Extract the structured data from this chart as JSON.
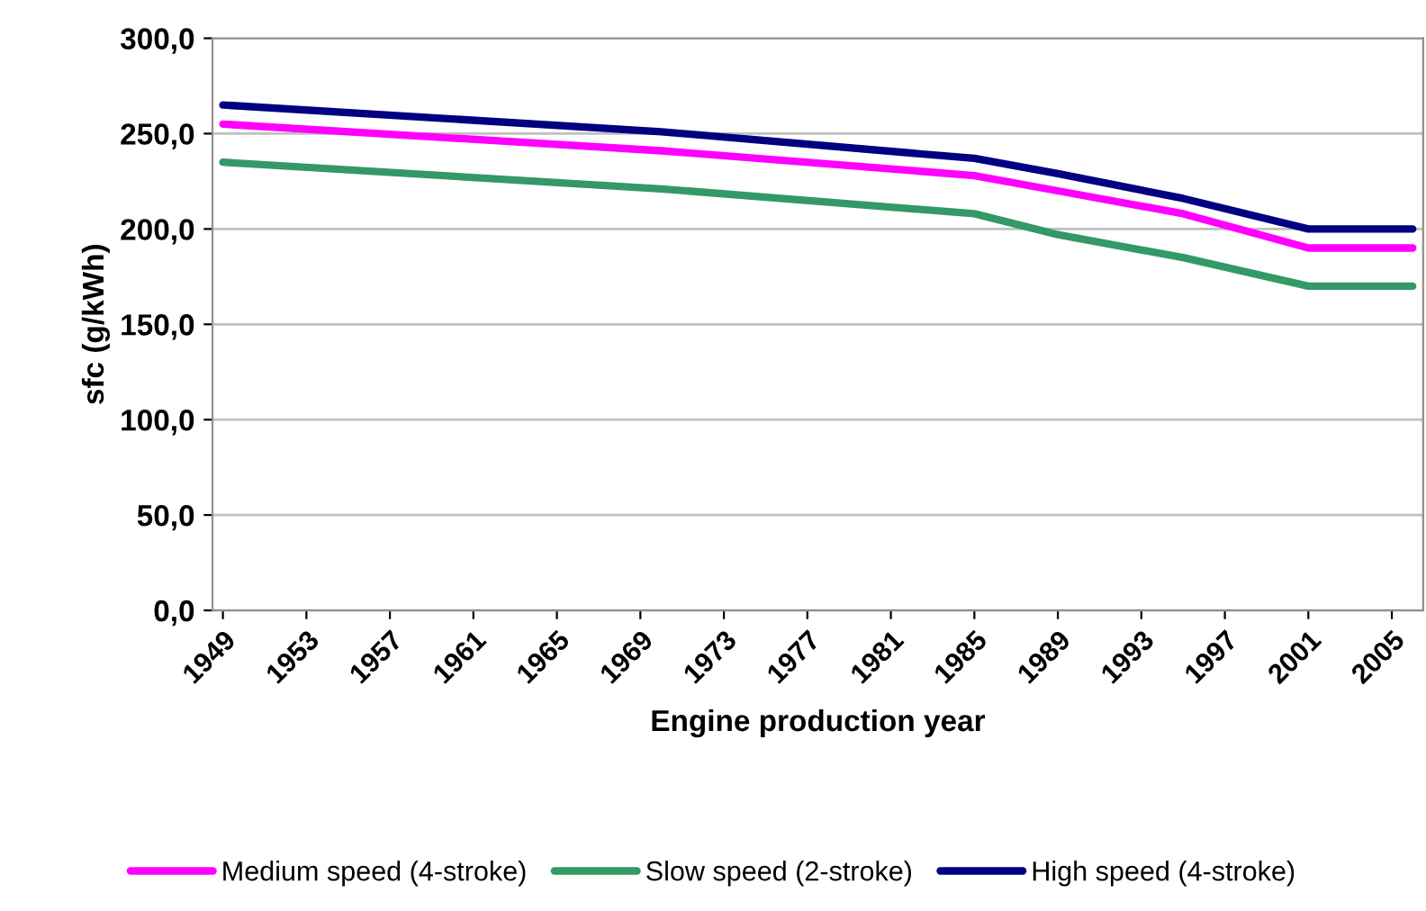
{
  "chart_data": {
    "type": "line",
    "xlabel": "Engine production year",
    "ylabel": "sfc (g/kWh)",
    "xlim": [
      1948.5,
      2006.5
    ],
    "xticks": [
      1949,
      1953,
      1957,
      1961,
      1965,
      1969,
      1973,
      1977,
      1981,
      1985,
      1989,
      1993,
      1997,
      2001,
      2005
    ],
    "ylim": [
      0,
      300
    ],
    "yticks": [
      {
        "value": 0,
        "label": "0,0"
      },
      {
        "value": 50,
        "label": "50,0"
      },
      {
        "value": 100,
        "label": "100,0"
      },
      {
        "value": 150,
        "label": "150,0"
      },
      {
        "value": 200,
        "label": "200,0"
      },
      {
        "value": 250,
        "label": "250,0"
      },
      {
        "value": 300,
        "label": "300,0"
      }
    ],
    "grid": "y",
    "legend": "bottom",
    "marker": "none",
    "line_style": "solid",
    "x": [
      1949,
      1970,
      1985,
      1989,
      1995,
      2001,
      2006
    ],
    "series": [
      {
        "name": "Medium speed (4-stroke)",
        "color": "#ff00ff",
        "values": [
          255,
          241,
          228,
          220,
          208,
          190,
          190
        ]
      },
      {
        "name": "Slow speed (2-stroke)",
        "color": "#339966",
        "values": [
          235,
          221,
          208,
          197,
          185,
          170,
          170
        ]
      },
      {
        "name": "High speed (4-stroke)",
        "color": "#000080",
        "values": [
          265,
          251,
          237,
          229,
          216,
          200,
          200
        ]
      }
    ]
  }
}
